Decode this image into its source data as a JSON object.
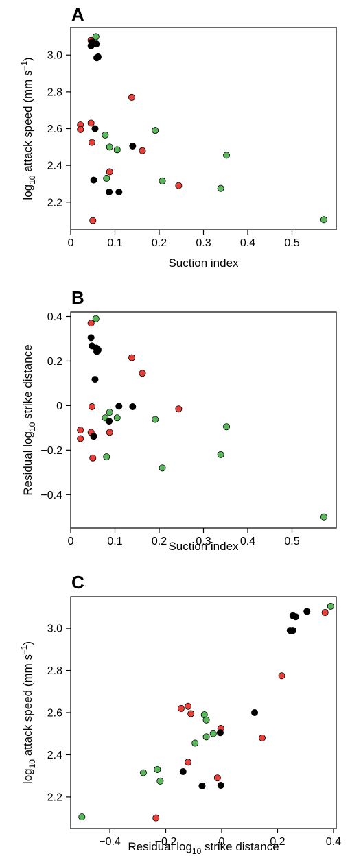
{
  "colors": {
    "black": "#000000",
    "red": "#e8413c",
    "green": "#5cb85c"
  },
  "chart_data": [
    {
      "type": "scatter",
      "panel": "A",
      "xlabel": "Suction index",
      "ylabel": {
        "pre": "log",
        "sub": "10",
        "mid": " attack speed (mm s",
        "sup": "–1",
        "post": ")"
      },
      "xlim": [
        0,
        0.6
      ],
      "ylim": [
        2.05,
        3.15
      ],
      "xticks": [
        0,
        0.1,
        0.2,
        0.3,
        0.4,
        0.5
      ],
      "xtick_labels": [
        "0",
        "0.1",
        "0.2",
        "0.3",
        "0.4",
        "0.5"
      ],
      "yticks": [
        2.2,
        2.4,
        2.6,
        2.8,
        3.0
      ],
      "ytick_labels": [
        "2.2",
        "2.4",
        "2.6",
        "2.8",
        "3.0"
      ],
      "points": [
        {
          "x": 0.046,
          "y": 3.08,
          "c": "red"
        },
        {
          "x": 0.057,
          "y": 3.1,
          "c": "green"
        },
        {
          "x": 0.048,
          "y": 3.07,
          "c": "black"
        },
        {
          "x": 0.058,
          "y": 3.06,
          "c": "black"
        },
        {
          "x": 0.046,
          "y": 3.05,
          "c": "black"
        },
        {
          "x": 0.062,
          "y": 2.99,
          "c": "black"
        },
        {
          "x": 0.059,
          "y": 2.985,
          "c": "black"
        },
        {
          "x": 0.138,
          "y": 2.77,
          "c": "red"
        },
        {
          "x": 0.022,
          "y": 2.62,
          "c": "red"
        },
        {
          "x": 0.046,
          "y": 2.63,
          "c": "red"
        },
        {
          "x": 0.055,
          "y": 2.6,
          "c": "black"
        },
        {
          "x": 0.022,
          "y": 2.595,
          "c": "red"
        },
        {
          "x": 0.191,
          "y": 2.59,
          "c": "green"
        },
        {
          "x": 0.078,
          "y": 2.565,
          "c": "green"
        },
        {
          "x": 0.048,
          "y": 2.525,
          "c": "red"
        },
        {
          "x": 0.14,
          "y": 2.505,
          "c": "black"
        },
        {
          "x": 0.088,
          "y": 2.5,
          "c": "green"
        },
        {
          "x": 0.105,
          "y": 2.485,
          "c": "green"
        },
        {
          "x": 0.162,
          "y": 2.48,
          "c": "red"
        },
        {
          "x": 0.352,
          "y": 2.455,
          "c": "green"
        },
        {
          "x": 0.088,
          "y": 2.365,
          "c": "red"
        },
        {
          "x": 0.081,
          "y": 2.33,
          "c": "green"
        },
        {
          "x": 0.052,
          "y": 2.32,
          "c": "black"
        },
        {
          "x": 0.207,
          "y": 2.315,
          "c": "green"
        },
        {
          "x": 0.244,
          "y": 2.29,
          "c": "red"
        },
        {
          "x": 0.339,
          "y": 2.275,
          "c": "green"
        },
        {
          "x": 0.087,
          "y": 2.255,
          "c": "black"
        },
        {
          "x": 0.109,
          "y": 2.255,
          "c": "black"
        },
        {
          "x": 0.05,
          "y": 2.1,
          "c": "red"
        },
        {
          "x": 0.572,
          "y": 2.105,
          "c": "green"
        }
      ]
    },
    {
      "type": "scatter",
      "panel": "B",
      "xlabel": "Suction index",
      "ylabel": {
        "pre": "Residual log",
        "sub": "10",
        "mid": " strike distance",
        "sup": "",
        "post": ""
      },
      "xlim": [
        0,
        0.6
      ],
      "ylim": [
        -0.55,
        0.42
      ],
      "xticks": [
        0,
        0.1,
        0.2,
        0.3,
        0.4,
        0.5
      ],
      "xtick_labels": [
        "0",
        "0.1",
        "0.2",
        "0.3",
        "0.4",
        "0.5"
      ],
      "yticks": [
        -0.4,
        -0.2,
        0,
        0.2,
        0.4
      ],
      "ytick_labels": [
        "−0.4",
        "−0.2",
        "0",
        "0.2",
        "0.4"
      ],
      "points": [
        {
          "x": 0.057,
          "y": 0.39,
          "c": "green"
        },
        {
          "x": 0.046,
          "y": 0.37,
          "c": "red"
        },
        {
          "x": 0.046,
          "y": 0.305,
          "c": "black"
        },
        {
          "x": 0.048,
          "y": 0.268,
          "c": "black"
        },
        {
          "x": 0.058,
          "y": 0.258,
          "c": "black"
        },
        {
          "x": 0.062,
          "y": 0.25,
          "c": "black"
        },
        {
          "x": 0.059,
          "y": 0.243,
          "c": "black"
        },
        {
          "x": 0.138,
          "y": 0.215,
          "c": "red"
        },
        {
          "x": 0.162,
          "y": 0.145,
          "c": "red"
        },
        {
          "x": 0.055,
          "y": 0.118,
          "c": "black"
        },
        {
          "x": 0.048,
          "y": -0.005,
          "c": "red"
        },
        {
          "x": 0.109,
          "y": -0.003,
          "c": "black"
        },
        {
          "x": 0.14,
          "y": -0.005,
          "c": "black"
        },
        {
          "x": 0.244,
          "y": -0.015,
          "c": "red"
        },
        {
          "x": 0.088,
          "y": -0.03,
          "c": "green"
        },
        {
          "x": 0.078,
          "y": -0.055,
          "c": "green"
        },
        {
          "x": 0.105,
          "y": -0.055,
          "c": "green"
        },
        {
          "x": 0.191,
          "y": -0.062,
          "c": "green"
        },
        {
          "x": 0.087,
          "y": -0.07,
          "c": "black"
        },
        {
          "x": 0.352,
          "y": -0.095,
          "c": "green"
        },
        {
          "x": 0.022,
          "y": -0.11,
          "c": "red"
        },
        {
          "x": 0.046,
          "y": -0.12,
          "c": "red"
        },
        {
          "x": 0.088,
          "y": -0.12,
          "c": "red"
        },
        {
          "x": 0.052,
          "y": -0.138,
          "c": "black"
        },
        {
          "x": 0.022,
          "y": -0.148,
          "c": "red"
        },
        {
          "x": 0.339,
          "y": -0.22,
          "c": "green"
        },
        {
          "x": 0.081,
          "y": -0.23,
          "c": "green"
        },
        {
          "x": 0.05,
          "y": -0.235,
          "c": "red"
        },
        {
          "x": 0.207,
          "y": -0.28,
          "c": "green"
        },
        {
          "x": 0.572,
          "y": -0.5,
          "c": "green"
        }
      ]
    },
    {
      "type": "scatter",
      "panel": "C",
      "xlabel": {
        "pre": "Residual log",
        "sub": "10",
        "mid": " strike distance"
      },
      "ylabel": {
        "pre": "log",
        "sub": "10",
        "mid": " attack speed (mm s",
        "sup": "–1",
        "post": ")"
      },
      "xlim": [
        -0.54,
        0.41
      ],
      "ylim": [
        2.05,
        3.15
      ],
      "xticks": [
        -0.4,
        -0.2,
        0,
        0.2,
        0.4
      ],
      "xtick_labels": [
        "−0.4",
        "−0.2",
        "0",
        "0.2",
        "0.4"
      ],
      "yticks": [
        2.2,
        2.4,
        2.6,
        2.8,
        3.0
      ],
      "ytick_labels": [
        "2.2",
        "2.4",
        "2.6",
        "2.8",
        "3.0"
      ],
      "points": [
        {
          "x": 0.39,
          "y": 3.105,
          "c": "green"
        },
        {
          "x": 0.37,
          "y": 3.075,
          "c": "red"
        },
        {
          "x": 0.305,
          "y": 3.08,
          "c": "black"
        },
        {
          "x": 0.255,
          "y": 3.06,
          "c": "black"
        },
        {
          "x": 0.265,
          "y": 3.055,
          "c": "black"
        },
        {
          "x": 0.245,
          "y": 2.99,
          "c": "black"
        },
        {
          "x": 0.255,
          "y": 2.99,
          "c": "black"
        },
        {
          "x": 0.215,
          "y": 2.775,
          "c": "red"
        },
        {
          "x": -0.145,
          "y": 2.62,
          "c": "red"
        },
        {
          "x": -0.12,
          "y": 2.63,
          "c": "red"
        },
        {
          "x": -0.11,
          "y": 2.595,
          "c": "red"
        },
        {
          "x": 0.118,
          "y": 2.6,
          "c": "black"
        },
        {
          "x": -0.062,
          "y": 2.59,
          "c": "green"
        },
        {
          "x": -0.055,
          "y": 2.565,
          "c": "green"
        },
        {
          "x": -0.003,
          "y": 2.525,
          "c": "red"
        },
        {
          "x": -0.005,
          "y": 2.505,
          "c": "black"
        },
        {
          "x": -0.03,
          "y": 2.5,
          "c": "green"
        },
        {
          "x": -0.055,
          "y": 2.485,
          "c": "green"
        },
        {
          "x": 0.145,
          "y": 2.48,
          "c": "red"
        },
        {
          "x": -0.095,
          "y": 2.455,
          "c": "green"
        },
        {
          "x": -0.12,
          "y": 2.365,
          "c": "red"
        },
        {
          "x": -0.23,
          "y": 2.33,
          "c": "green"
        },
        {
          "x": -0.138,
          "y": 2.32,
          "c": "black"
        },
        {
          "x": -0.28,
          "y": 2.315,
          "c": "green"
        },
        {
          "x": -0.015,
          "y": 2.29,
          "c": "red"
        },
        {
          "x": -0.22,
          "y": 2.275,
          "c": "green"
        },
        {
          "x": -0.07,
          "y": 2.252,
          "c": "black"
        },
        {
          "x": -0.003,
          "y": 2.255,
          "c": "black"
        },
        {
          "x": -0.235,
          "y": 2.1,
          "c": "red"
        },
        {
          "x": -0.5,
          "y": 2.105,
          "c": "green"
        }
      ]
    }
  ]
}
